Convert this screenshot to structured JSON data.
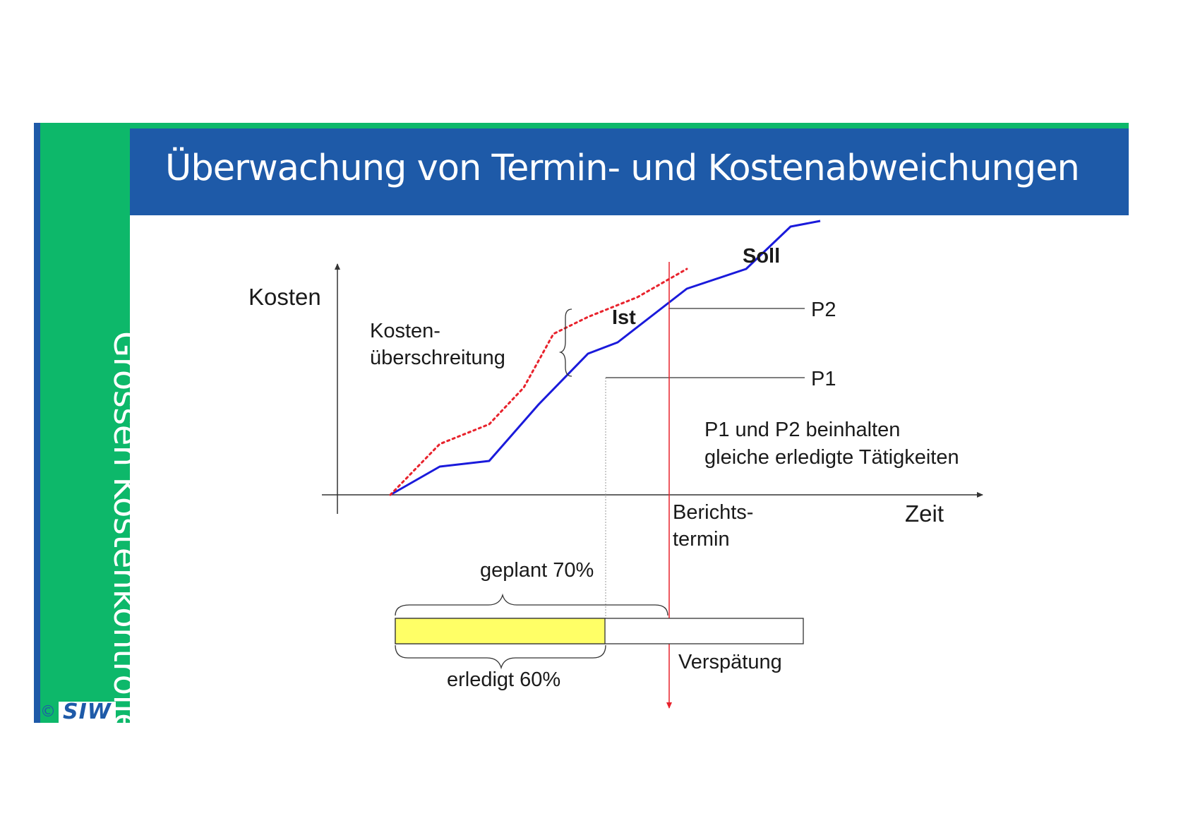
{
  "slide": {
    "title": "Überwachung von Termin- und Kostenabweichungen",
    "sidebar_label": "Grössen Kostenkontrolle",
    "logo": {
      "copyright": "©",
      "mark": "SIW"
    }
  },
  "colors": {
    "sidebar_green": "#0db86a",
    "header_blue": "#1e5aa8",
    "soll_line": "#1a1adb",
    "ist_line": "#e8222c",
    "report_line": "#e8222c",
    "done_bar": "#ffff66"
  },
  "diagram": {
    "y_axis_label": "Kosten",
    "x_axis_label": "Zeit",
    "soll_label": "Soll",
    "ist_label": "Ist",
    "p1_label": "P1",
    "p2_label": "P2",
    "overrun_label_line1": "Kosten-",
    "overrun_label_line2": "überschreitung",
    "report_date_line1": "Berichts-",
    "report_date_line2": "termin",
    "note_line1": "P1 und P2 beinhalten",
    "note_line2": "gleiche erledigte Tätigkeiten",
    "planned_label": "geplant 70%",
    "done_label": "erledigt 60%",
    "delay_label": "Verspätung"
  },
  "chart_data": {
    "type": "line",
    "xlabel": "Zeit",
    "ylabel": "Kosten",
    "series": [
      {
        "name": "Soll",
        "style": "solid",
        "points": [
          [
            0,
            0
          ],
          [
            1,
            1
          ],
          [
            2,
            1.2
          ],
          [
            3,
            3.2
          ],
          [
            4,
            5
          ],
          [
            4.6,
            5.4
          ],
          [
            6,
            7.3
          ],
          [
            7.2,
            8
          ],
          [
            8.1,
            9.5
          ],
          [
            8.7,
            9.7
          ]
        ]
      },
      {
        "name": "Ist",
        "style": "dotted",
        "points": [
          [
            0,
            0
          ],
          [
            1,
            1.8
          ],
          [
            2,
            2.5
          ],
          [
            2.7,
            3.8
          ],
          [
            3.3,
            5.7
          ],
          [
            4,
            6.3
          ],
          [
            5,
            7
          ],
          [
            6,
            8
          ]
        ]
      }
    ],
    "progress_bar": {
      "planned_percent": 70,
      "done_percent": 60
    }
  }
}
